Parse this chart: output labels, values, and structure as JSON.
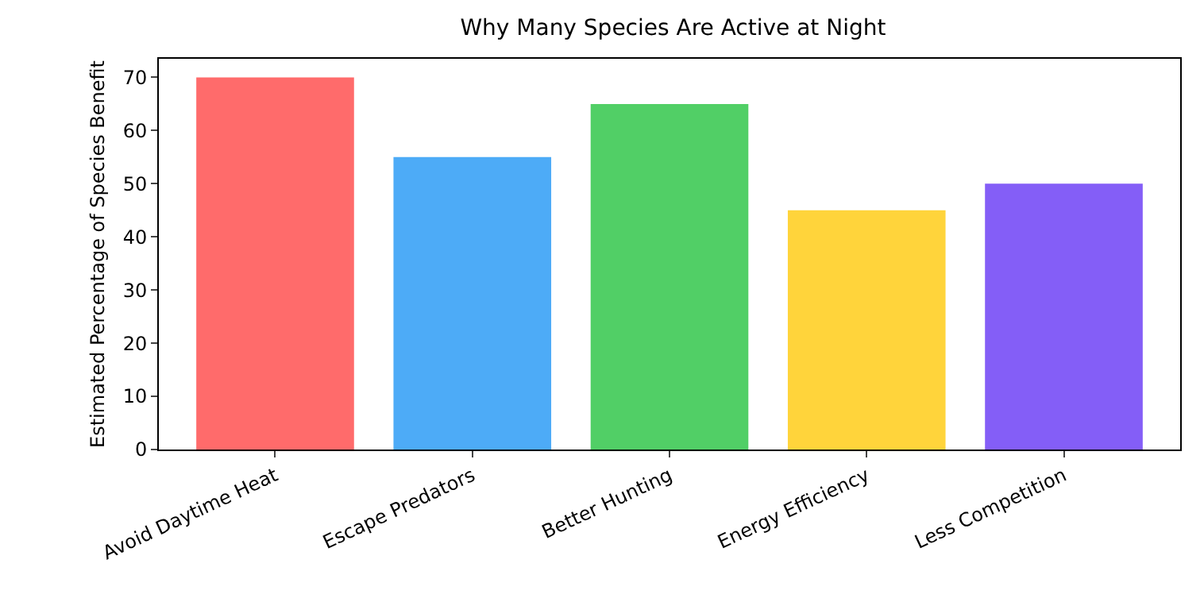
{
  "chart_data": {
    "type": "bar",
    "title": "Why Many Species Are Active at Night",
    "ylabel": "Estimated Percentage of Species Benefit",
    "categories": [
      "Avoid Daytime Heat",
      "Escape Predators",
      "Better Hunting",
      "Energy Efficiency",
      "Less Competition"
    ],
    "values": [
      70,
      55,
      65,
      45,
      50
    ],
    "colors": [
      "#ff6b6b",
      "#4dabf7",
      "#51cf66",
      "#ffd43b",
      "#845ef7"
    ],
    "ylim": [
      0,
      73.5
    ],
    "yticks": [
      0,
      10,
      20,
      30,
      40,
      50,
      60,
      70
    ],
    "grid": false,
    "legend": false
  }
}
